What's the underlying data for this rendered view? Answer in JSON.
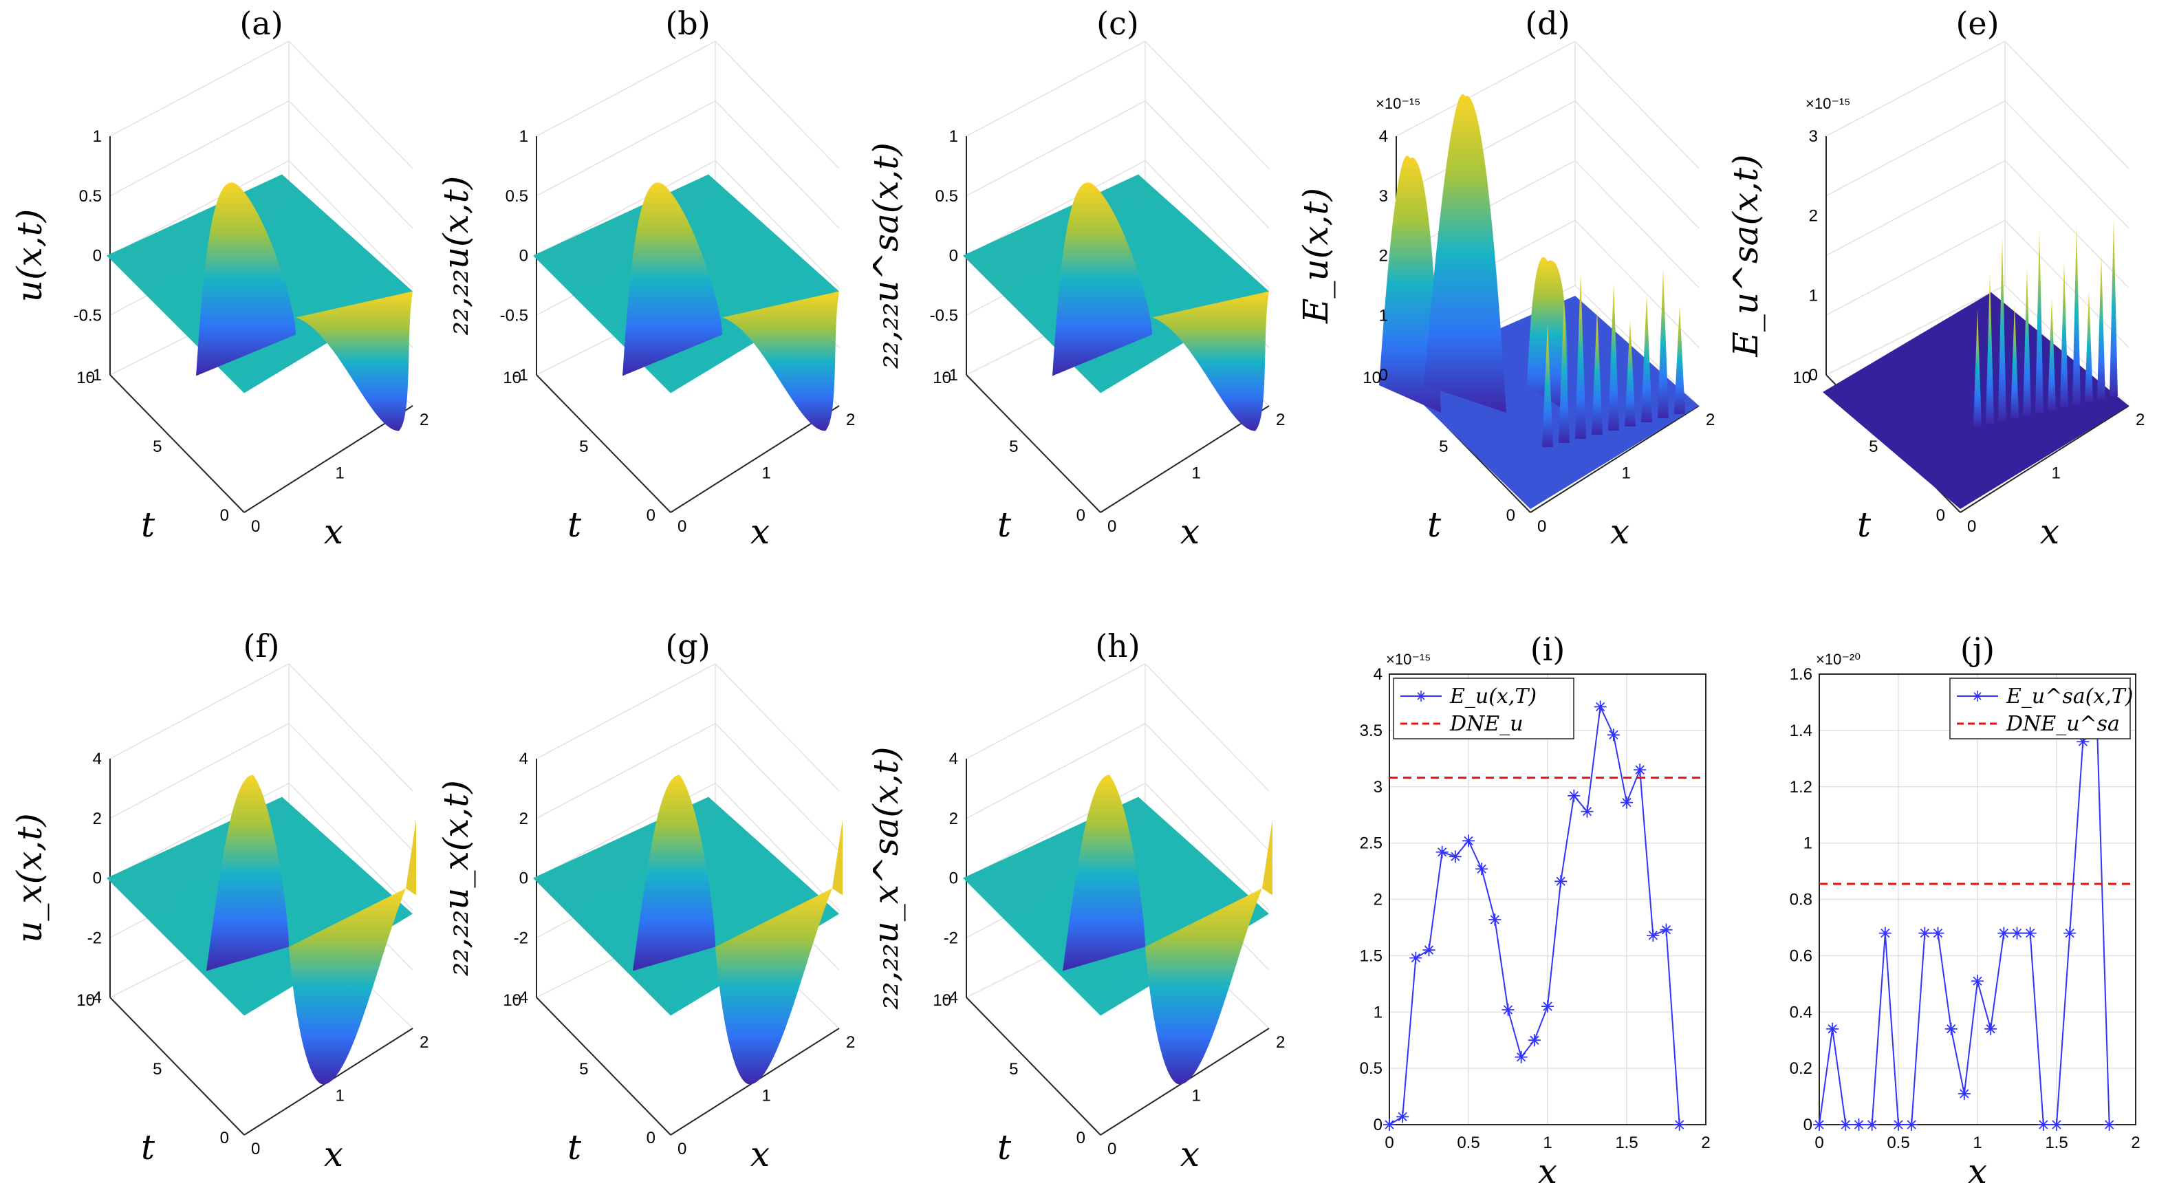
{
  "panels": [
    {
      "id": "a",
      "label": "(a)",
      "kind": "surface3d",
      "zlabel": "u(x,t)",
      "xlabel": "x",
      "ylabel": "t",
      "zticks": [
        "1",
        "0.5",
        "0",
        "-0.5",
        "-1"
      ],
      "tticks": [
        "10",
        "5",
        "0"
      ],
      "xticks": [
        "0",
        "1",
        "2"
      ],
      "zscale": "",
      "surface": "u"
    },
    {
      "id": "b",
      "label": "(b)",
      "kind": "surface3d",
      "zlabel": "₂₂,₂₂u(x,t)",
      "xlabel": "x",
      "ylabel": "t",
      "zticks": [
        "1",
        "0.5",
        "0",
        "-0.5",
        "-1"
      ],
      "tticks": [
        "10",
        "5",
        "0"
      ],
      "xticks": [
        "0",
        "1",
        "2"
      ],
      "zscale": "",
      "surface": "u"
    },
    {
      "id": "c",
      "label": "(c)",
      "kind": "surface3d",
      "zlabel": "₂₂,₂₂u^sa(x,t)",
      "xlabel": "x",
      "ylabel": "t",
      "zticks": [
        "1",
        "0.5",
        "0",
        "-0.5",
        "-1"
      ],
      "tticks": [
        "10",
        "5",
        "0"
      ],
      "xticks": [
        "0",
        "1",
        "2"
      ],
      "zscale": "",
      "surface": "u"
    },
    {
      "id": "d",
      "label": "(d)",
      "kind": "surface3d",
      "zlabel": "E_u(x,t)",
      "xlabel": "x",
      "ylabel": "t",
      "zticks": [
        "4",
        "3",
        "2",
        "1",
        "0"
      ],
      "tticks": [
        "10",
        "5",
        "0"
      ],
      "xticks": [
        "0",
        "1",
        "2"
      ],
      "zscale": "×10⁻¹⁵",
      "surface": "err1"
    },
    {
      "id": "e",
      "label": "(e)",
      "kind": "surface3d",
      "zlabel": "E_u^sa(x,t)",
      "xlabel": "x",
      "ylabel": "t",
      "zticks": [
        "3",
        "2",
        "1",
        "0"
      ],
      "tticks": [
        "10",
        "5",
        "0"
      ],
      "xticks": [
        "0",
        "1",
        "2"
      ],
      "zscale": "×10⁻¹⁵",
      "surface": "err2"
    },
    {
      "id": "f",
      "label": "(f)",
      "kind": "surface3d",
      "zlabel": "u_x(x,t)",
      "xlabel": "x",
      "ylabel": "t",
      "zticks": [
        "4",
        "2",
        "0",
        "-2",
        "-4"
      ],
      "tticks": [
        "10",
        "5",
        "0"
      ],
      "xticks": [
        "0",
        "1",
        "2"
      ],
      "zscale": "",
      "surface": "ux"
    },
    {
      "id": "g",
      "label": "(g)",
      "kind": "surface3d",
      "zlabel": "₂₂,₂₂u_x(x,t)",
      "xlabel": "x",
      "ylabel": "t",
      "zticks": [
        "4",
        "2",
        "0",
        "-2",
        "-4"
      ],
      "tticks": [
        "10",
        "5",
        "0"
      ],
      "xticks": [
        "0",
        "1",
        "2"
      ],
      "zscale": "",
      "surface": "ux"
    },
    {
      "id": "h",
      "label": "(h)",
      "kind": "surface3d",
      "zlabel": "₂₂,₂₂u_x^sa(x,t)",
      "xlabel": "x",
      "ylabel": "t",
      "zticks": [
        "4",
        "2",
        "0",
        "-2",
        "-4"
      ],
      "tticks": [
        "10",
        "5",
        "0"
      ],
      "xticks": [
        "0",
        "1",
        "2"
      ],
      "zscale": "",
      "surface": "ux"
    }
  ],
  "line_panels": [
    {
      "id": "i",
      "label": "(i)",
      "xlabel": "x",
      "yscale": "×10⁻¹⁵",
      "legend": [
        "E_u(x,T)",
        "DNE_u"
      ]
    },
    {
      "id": "j",
      "label": "(j)",
      "xlabel": "x",
      "yscale": "×10⁻²⁰",
      "legend": [
        "E_u^sa(x,T)",
        "DNE_u^sa"
      ]
    }
  ],
  "chart_data": [
    {
      "type": "line",
      "panel": "i",
      "xlim": [
        0,
        2
      ],
      "ylim": [
        0,
        4
      ],
      "xticks": [
        0,
        0.5,
        1,
        1.5,
        2
      ],
      "yticks": [
        0,
        0.5,
        1,
        1.5,
        2,
        2.5,
        3,
        3.5,
        4
      ],
      "ytick_labels": [
        "0",
        "0.5",
        "1",
        "1.5",
        "2",
        "2.5",
        "3",
        "3.5",
        "4"
      ],
      "xtick_labels": [
        "0",
        "0.5",
        "1",
        "1.5",
        "2"
      ],
      "x": [
        0,
        0.0833,
        0.1667,
        0.25,
        0.3333,
        0.4167,
        0.5,
        0.5833,
        0.6667,
        0.75,
        0.8333,
        0.9167,
        1.0,
        1.0833,
        1.1667,
        1.25,
        1.3333,
        1.4167,
        1.5,
        1.5833,
        1.6667,
        1.75,
        1.8333,
        1.9167,
        2.0
      ],
      "series": [
        {
          "name": "E_u(x,T)",
          "color": "#3333ff",
          "marker": "*",
          "values": [
            0,
            0.07,
            1.48,
            1.55,
            2.42,
            2.38,
            2.52,
            2.27,
            1.82,
            1.02,
            0.6,
            0.75,
            1.05,
            2.16,
            2.92,
            2.78,
            3.71,
            3.46,
            2.86,
            3.15,
            1.68,
            1.73,
            0.0,
            null,
            null
          ]
        },
        {
          "name": "DNE_u",
          "color": "#ee1111",
          "style": "dashed",
          "constant": 3.08
        }
      ],
      "grid": true,
      "legend_position": "top-left"
    },
    {
      "type": "line",
      "panel": "j",
      "xlim": [
        0,
        2
      ],
      "ylim": [
        0,
        1.6
      ],
      "xticks": [
        0,
        0.5,
        1,
        1.5,
        2
      ],
      "yticks": [
        0,
        0.2,
        0.4,
        0.6,
        0.8,
        1,
        1.2,
        1.4,
        1.6
      ],
      "ytick_labels": [
        "0",
        "0.2",
        "0.4",
        "0.6",
        "0.8",
        "1",
        "1.2",
        "1.4",
        "1.6"
      ],
      "xtick_labels": [
        "0",
        "0.5",
        "1",
        "1.5",
        "2"
      ],
      "x": [
        0,
        0.0833,
        0.1667,
        0.25,
        0.3333,
        0.4167,
        0.5,
        0.5833,
        0.6667,
        0.75,
        0.8333,
        0.9167,
        1.0,
        1.0833,
        1.1667,
        1.25,
        1.3333,
        1.4167,
        1.5,
        1.5833,
        1.6667,
        1.75,
        1.8333,
        1.9167,
        2.0
      ],
      "series": [
        {
          "name": "E_u^sa(x,T)",
          "color": "#3333ff",
          "marker": "*",
          "values": [
            0,
            0.34,
            0,
            0,
            0,
            0.68,
            0,
            0,
            0.68,
            0.68,
            0.34,
            0.11,
            0.51,
            0.34,
            0.68,
            0.68,
            0.68,
            0,
            0,
            0.68,
            1.36,
            1.53,
            0,
            null,
            null
          ]
        },
        {
          "name": "DNE_u^sa",
          "color": "#ee1111",
          "style": "dashed",
          "constant": 0.855
        }
      ],
      "grid": true,
      "legend_position": "top-right"
    }
  ]
}
